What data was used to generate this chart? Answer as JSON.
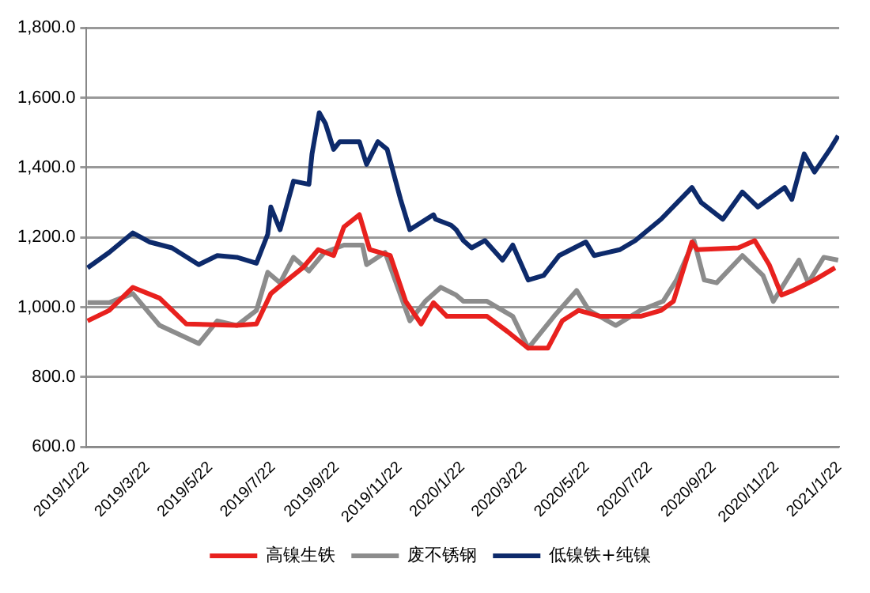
{
  "chart_data": {
    "type": "line",
    "xlim": [
      "2019-01-22",
      "2021-01-22"
    ],
    "xticks": [
      {
        "value": "2019-01-22",
        "label": "2019/1/22"
      },
      {
        "value": "2019-03-22",
        "label": "2019/3/22"
      },
      {
        "value": "2019-05-22",
        "label": "2019/5/22"
      },
      {
        "value": "2019-07-22",
        "label": "2019/7/22"
      },
      {
        "value": "2019-09-22",
        "label": "2019/9/22"
      },
      {
        "value": "2019-11-22",
        "label": "2019/11/22"
      },
      {
        "value": "2020-01-22",
        "label": "2020/1/22"
      },
      {
        "value": "2020-03-22",
        "label": "2020/3/22"
      },
      {
        "value": "2020-05-22",
        "label": "2020/5/22"
      },
      {
        "value": "2020-07-22",
        "label": "2020/7/22"
      },
      {
        "value": "2020-09-22",
        "label": "2020/9/22"
      },
      {
        "value": "2020-11-22",
        "label": "2020/11/22"
      },
      {
        "value": "2021-01-22",
        "label": "2021/1/22"
      }
    ],
    "ylim": [
      600,
      1800
    ],
    "yticks": [
      {
        "value": 600,
        "label": "600.0"
      },
      {
        "value": 800,
        "label": "800.0"
      },
      {
        "value": 1000,
        "label": "1,000.0"
      },
      {
        "value": 1200,
        "label": "1,200.0"
      },
      {
        "value": 1400,
        "label": "1,400.0"
      },
      {
        "value": 1600,
        "label": "1,600.0"
      },
      {
        "value": 1800,
        "label": "1,800.0"
      }
    ],
    "grid": "y",
    "legend": "bottom",
    "marker": "none",
    "line_style": "solid",
    "series": [
      {
        "name": "高镍生铁",
        "color": "#e8211e",
        "x": [
          "2019-01-23",
          "2019-02-13",
          "2019-03-08",
          "2019-04-03",
          "2019-04-29",
          "2019-06-17",
          "2019-07-06",
          "2019-07-20",
          "2019-07-29",
          "2019-08-20",
          "2019-09-04",
          "2019-09-19",
          "2019-09-29",
          "2019-10-14",
          "2019-10-24",
          "2019-11-13",
          "2019-11-28",
          "2019-12-13",
          "2019-12-25",
          "2020-01-07",
          "2020-02-15",
          "2020-03-06",
          "2020-03-26",
          "2020-04-14",
          "2020-04-28",
          "2020-05-14",
          "2020-06-04",
          "2020-07-13",
          "2020-08-02",
          "2020-08-14",
          "2020-09-01",
          "2020-09-06",
          "2020-10-16",
          "2020-11-01",
          "2020-11-15",
          "2020-11-27",
          "2020-12-08",
          "2020-12-29",
          "2021-01-18"
        ],
        "values": [
          961,
          991,
          1057,
          1026,
          952,
          948,
          952,
          1039,
          1061,
          1113,
          1165,
          1148,
          1230,
          1265,
          1165,
          1148,
          1017,
          952,
          1013,
          974,
          974,
          930,
          883,
          883,
          961,
          991,
          974,
          974,
          991,
          1017,
          1187,
          1165,
          1170,
          1191,
          1122,
          1035,
          1048,
          1078,
          1113
        ]
      },
      {
        "name": "废不锈钢",
        "color": "#8c8c8c",
        "x": [
          "2019-01-23",
          "2019-02-13",
          "2019-03-08",
          "2019-04-03",
          "2019-05-11",
          "2019-05-29",
          "2019-06-17",
          "2019-07-06",
          "2019-07-17",
          "2019-07-29",
          "2019-08-11",
          "2019-08-26",
          "2019-09-10",
          "2019-09-29",
          "2019-10-17",
          "2019-10-21",
          "2019-11-08",
          "2019-12-02",
          "2019-12-17",
          "2020-01-01",
          "2020-01-16",
          "2020-01-23",
          "2020-02-15",
          "2020-03-11",
          "2020-03-26",
          "2020-04-20",
          "2020-05-12",
          "2020-05-24",
          "2020-06-19",
          "2020-07-13",
          "2020-08-04",
          "2020-08-17",
          "2020-09-03",
          "2020-09-13",
          "2020-09-25",
          "2020-10-20",
          "2020-11-09",
          "2020-11-19",
          "2020-12-14",
          "2020-12-23",
          "2021-01-07",
          "2021-01-21"
        ],
        "values": [
          1013,
          1013,
          1039,
          948,
          896,
          961,
          948,
          991,
          1100,
          1070,
          1143,
          1104,
          1157,
          1178,
          1178,
          1122,
          1157,
          961,
          1017,
          1057,
          1035,
          1017,
          1017,
          974,
          883,
          974,
          1048,
          991,
          948,
          991,
          1017,
          1078,
          1191,
          1078,
          1070,
          1148,
          1091,
          1017,
          1135,
          1070,
          1143,
          1135
        ]
      },
      {
        "name": "低镍铁+纯镍",
        "color": "#0d2a6b",
        "x": [
          "2019-01-23",
          "2019-02-13",
          "2019-03-08",
          "2019-03-24",
          "2019-04-15",
          "2019-05-11",
          "2019-05-29",
          "2019-06-17",
          "2019-07-06",
          "2019-07-17",
          "2019-07-20",
          "2019-07-29",
          "2019-08-11",
          "2019-08-26",
          "2019-08-29",
          "2019-09-05",
          "2019-09-11",
          "2019-09-19",
          "2019-09-25",
          "2019-10-14",
          "2019-10-21",
          "2019-11-01",
          "2019-11-10",
          "2019-11-23",
          "2019-12-02",
          "2019-12-25",
          "2019-12-27",
          "2020-01-11",
          "2020-01-16",
          "2020-01-23",
          "2020-01-31",
          "2020-02-13",
          "2020-03-01",
          "2020-03-11",
          "2020-03-26",
          "2020-04-10",
          "2020-04-25",
          "2020-05-21",
          "2020-05-29",
          "2020-06-23",
          "2020-07-08",
          "2020-08-02",
          "2020-09-01",
          "2020-09-10",
          "2020-10-01",
          "2020-10-20",
          "2020-11-04",
          "2020-11-30",
          "2020-12-07",
          "2020-12-19",
          "2020-12-29",
          "2021-01-13",
          "2021-01-21"
        ],
        "values": [
          1113,
          1157,
          1213,
          1187,
          1170,
          1122,
          1148,
          1143,
          1126,
          1209,
          1287,
          1222,
          1361,
          1352,
          1439,
          1557,
          1526,
          1452,
          1474,
          1474,
          1409,
          1474,
          1452,
          1309,
          1222,
          1265,
          1252,
          1235,
          1222,
          1191,
          1170,
          1191,
          1135,
          1178,
          1078,
          1091,
          1148,
          1187,
          1148,
          1165,
          1191,
          1252,
          1343,
          1300,
          1252,
          1330,
          1287,
          1343,
          1309,
          1439,
          1387,
          1452,
          1491
        ]
      }
    ]
  }
}
